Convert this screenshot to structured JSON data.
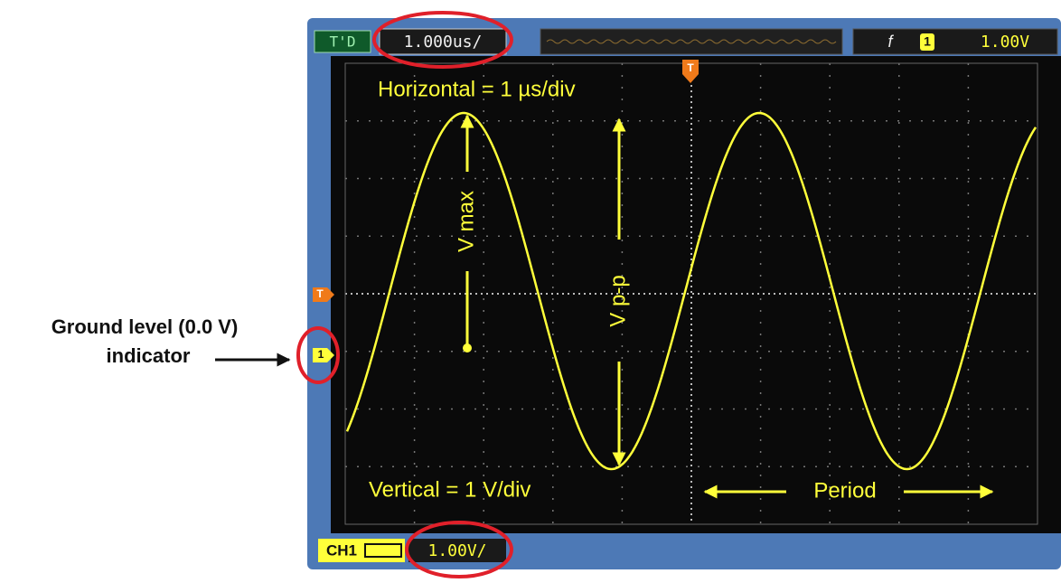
{
  "top_bar": {
    "mode": "T'D",
    "timebase": "1.000us/",
    "trigger_slope": "f",
    "trigger_channel": "1",
    "trigger_level": "1.00V"
  },
  "markers": {
    "trigger_top": "T",
    "trigger_side": "T",
    "ground": "1"
  },
  "annotations": {
    "horizontal": "Horizontal = 1 µs/div",
    "vmax": "V max",
    "vpp": "V p-p",
    "vertical": "Vertical = 1 V/div",
    "period": "Period"
  },
  "side_label": {
    "line1": "Ground level (0.0 V)",
    "line2": "indicator"
  },
  "bottom_bar": {
    "channel": "CH1",
    "volts_per_div": "1.00V/"
  }
}
